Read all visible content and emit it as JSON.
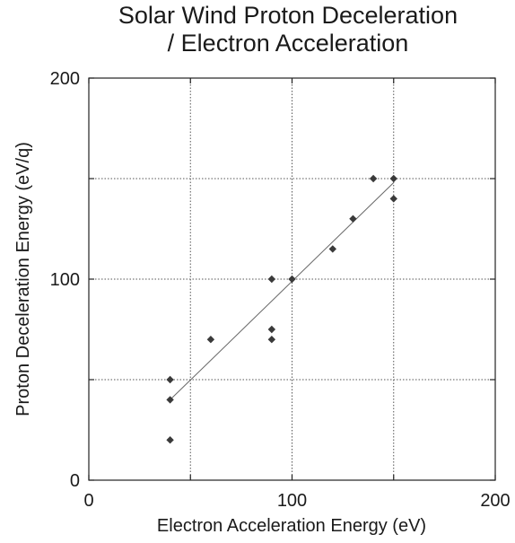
{
  "chart_data": {
    "type": "scatter",
    "title_lines": [
      "Solar Wind Proton Deceleration",
      "/ Electron Acceleration"
    ],
    "xlabel": "Electron Acceleration Energy (eV)",
    "ylabel": "Proton Deceleration Energy (eV/q)",
    "xlim": [
      0,
      200
    ],
    "ylim": [
      0,
      200
    ],
    "x_ticks": [
      0,
      100,
      200
    ],
    "y_ticks": [
      0,
      100,
      200
    ],
    "grid": true,
    "points": [
      {
        "x": 40,
        "y": 20
      },
      {
        "x": 40,
        "y": 40
      },
      {
        "x": 40,
        "y": 50
      },
      {
        "x": 60,
        "y": 70
      },
      {
        "x": 90,
        "y": 70
      },
      {
        "x": 90,
        "y": 75
      },
      {
        "x": 90,
        "y": 100
      },
      {
        "x": 100,
        "y": 100
      },
      {
        "x": 120,
        "y": 115
      },
      {
        "x": 130,
        "y": 130
      },
      {
        "x": 140,
        "y": 150
      },
      {
        "x": 150,
        "y": 150
      },
      {
        "x": 150,
        "y": 140
      }
    ],
    "fit_line": {
      "x1": 40,
      "y1": 40,
      "x2": 150,
      "y2": 148
    }
  },
  "colors": {
    "points": "#3a3a3a",
    "fit_line": "#666666",
    "grid": "#555555",
    "text": "#1a1a1a"
  }
}
